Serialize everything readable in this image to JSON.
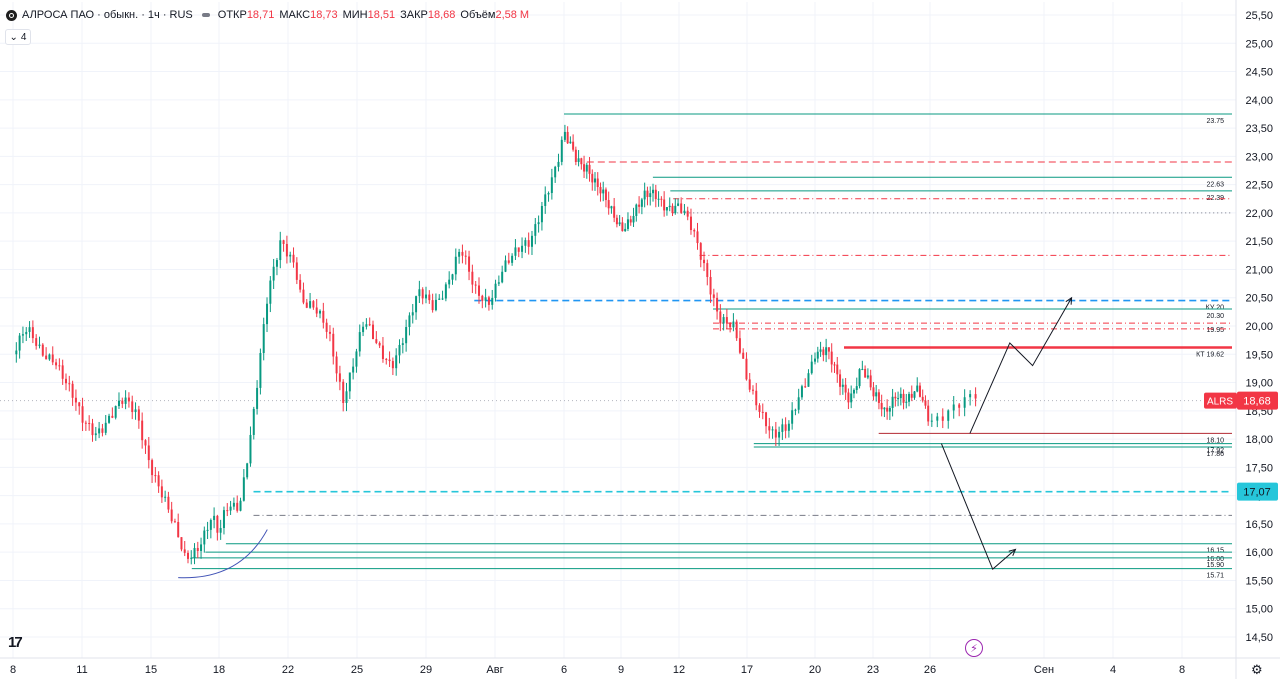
{
  "header": {
    "symbol_title": "АЛРОСА ПАО · обыкн. · 1ч · RUS",
    "ohlc": [
      {
        "label": "ОТКР",
        "value": "18,71"
      },
      {
        "label": "МАКС",
        "value": "18,73"
      },
      {
        "label": "МИН",
        "value": "18,51"
      },
      {
        "label": "ЗАКР",
        "value": "18,68"
      },
      {
        "label": "Объём",
        "value": "2,58 M"
      }
    ],
    "indicators_count": "4",
    "logo_text": "17"
  },
  "chart_data": {
    "type": "candlestick",
    "symbol": "ALRS",
    "last_price": "18,68",
    "price_axis": {
      "ylim": [
        14.5,
        25.5
      ],
      "ticks": [
        "25,50",
        "25,00",
        "24,50",
        "24,00",
        "23,50",
        "23,00",
        "22,50",
        "22,00",
        "21,50",
        "21,00",
        "20,50",
        "20,00",
        "19,50",
        "19,00",
        "18,50",
        "18,00",
        "17,50",
        "17,00",
        "16,50",
        "16,00",
        "15,50",
        "15,00",
        "14,50"
      ]
    },
    "time_axis": {
      "ticks": [
        {
          "label": "8",
          "i": 0
        },
        {
          "label": "11",
          "i": 1
        },
        {
          "label": "15",
          "i": 2
        },
        {
          "label": "18",
          "i": 3
        },
        {
          "label": "22",
          "i": 4
        },
        {
          "label": "25",
          "i": 5
        },
        {
          "label": "29",
          "i": 6
        },
        {
          "label": "Авг",
          "i": 7
        },
        {
          "label": "6",
          "i": 8
        },
        {
          "label": "9",
          "i": 9
        },
        {
          "label": "12",
          "i": 10
        },
        {
          "label": "17",
          "i": 11
        },
        {
          "label": "20",
          "i": 12
        },
        {
          "label": "23",
          "i": 13
        },
        {
          "label": "26",
          "i": 14
        },
        {
          "label": "Сен",
          "i": 15
        },
        {
          "label": "4",
          "i": 16
        },
        {
          "label": "8",
          "i": 17
        }
      ]
    },
    "price_path": [
      [
        0,
        19.5
      ],
      [
        0.2,
        19.85
      ],
      [
        0.4,
        19.6
      ],
      [
        0.6,
        19.5
      ],
      [
        0.8,
        18.85
      ],
      [
        1.0,
        18.3
      ],
      [
        1.2,
        18.2
      ],
      [
        1.4,
        18.4
      ],
      [
        1.6,
        18.6
      ],
      [
        1.8,
        18.45
      ],
      [
        2.0,
        17.6
      ],
      [
        2.3,
        16.5
      ],
      [
        2.5,
        15.9
      ],
      [
        2.7,
        16.2
      ],
      [
        2.9,
        16.6
      ],
      [
        3.0,
        16.2
      ],
      [
        3.1,
        16.7
      ],
      [
        3.3,
        16.9
      ],
      [
        3.5,
        18.5
      ],
      [
        3.7,
        20.4
      ],
      [
        3.9,
        21.5
      ],
      [
        4.1,
        21.2
      ],
      [
        4.2,
        20.5
      ],
      [
        4.4,
        20.2
      ],
      [
        4.6,
        19.8
      ],
      [
        4.8,
        18.8
      ],
      [
        4.9,
        19.2
      ],
      [
        5.1,
        20.0
      ],
      [
        5.3,
        19.6
      ],
      [
        5.5,
        19.4
      ],
      [
        5.7,
        19.9
      ],
      [
        5.9,
        20.5
      ],
      [
        6.1,
        20.4
      ],
      [
        6.3,
        20.8
      ],
      [
        6.5,
        21.3
      ],
      [
        6.7,
        20.6
      ],
      [
        6.9,
        20.5
      ],
      [
        7.1,
        21.0
      ],
      [
        7.3,
        21.2
      ],
      [
        7.5,
        21.5
      ],
      [
        7.7,
        22.3
      ],
      [
        7.9,
        22.8
      ],
      [
        8.0,
        23.3
      ],
      [
        8.2,
        23.0
      ],
      [
        8.4,
        22.9
      ],
      [
        8.6,
        22.4
      ],
      [
        8.8,
        22.0
      ],
      [
        9.0,
        21.8
      ],
      [
        9.2,
        22.0
      ],
      [
        9.4,
        22.2
      ],
      [
        9.6,
        22.3
      ],
      [
        9.8,
        22.2
      ],
      [
        10.0,
        22.1
      ],
      [
        10.2,
        21.6
      ],
      [
        10.4,
        21.0
      ],
      [
        10.6,
        20.2
      ],
      [
        10.8,
        19.9
      ],
      [
        11.0,
        19.0
      ],
      [
        11.2,
        18.6
      ],
      [
        11.4,
        18.05
      ],
      [
        11.6,
        18.1
      ],
      [
        11.8,
        18.9
      ],
      [
        12.0,
        19.6
      ],
      [
        12.2,
        19.5
      ],
      [
        12.4,
        19.0
      ],
      [
        12.6,
        18.8
      ],
      [
        12.8,
        19.3
      ],
      [
        13.0,
        18.7
      ],
      [
        13.2,
        18.5
      ],
      [
        13.4,
        18.9
      ],
      [
        13.6,
        18.6
      ],
      [
        13.8,
        18.8
      ],
      [
        14.0,
        18.4
      ],
      [
        14.2,
        18.6
      ],
      [
        14.4,
        18.68
      ]
    ],
    "levels": [
      {
        "price": 23.75,
        "label": "23.75",
        "color": "#089981",
        "style": "solid",
        "x0": 8.0
      },
      {
        "price": 22.9,
        "label": "",
        "color": "#f23645",
        "style": "dashed",
        "x0": 8.4
      },
      {
        "price": 22.63,
        "label": "22.63",
        "color": "#089981",
        "style": "solid",
        "x0": 9.55
      },
      {
        "price": 22.39,
        "label": "22.39",
        "color": "#089981",
        "style": "solid",
        "x0": 9.85
      },
      {
        "price": 22.25,
        "label": "",
        "color": "#f23645",
        "style": "dashdot",
        "x0": 9.9
      },
      {
        "price": 22.0,
        "label": "",
        "color": "#787b86",
        "style": "dotted",
        "x0": 9.9
      },
      {
        "price": 21.25,
        "label": "",
        "color": "#f23645",
        "style": "dashdot",
        "x0": 10.3
      },
      {
        "price": 20.45,
        "label": "КУ 20",
        "color": "#2196f3",
        "style": "dashed",
        "x0": 6.7
      },
      {
        "price": 20.3,
        "label": "20.30",
        "color": "#089981",
        "style": "solid",
        "x0": 10.5
      },
      {
        "price": 20.05,
        "label": "19.95",
        "color": "#f23645",
        "style": "dashdot",
        "x0": 10.5
      },
      {
        "price": 19.95,
        "label": "",
        "color": "#f23645",
        "style": "dashdot",
        "x0": 10.5
      },
      {
        "price": 19.62,
        "label": "КТ 19.62",
        "color": "#f23645",
        "style": "solid",
        "x0": 12.5
      },
      {
        "price": 18.1,
        "label": "18.10",
        "color": "#b22833",
        "style": "solid",
        "x0": 13.1
      },
      {
        "price": 17.92,
        "label": "17.92",
        "color": "#089981",
        "style": "solid",
        "x0": 11.1
      },
      {
        "price": 17.86,
        "label": "17.86",
        "color": "#089981",
        "style": "solid",
        "x0": 11.1
      },
      {
        "price": 17.07,
        "label": "",
        "color": "#26c6da",
        "style": "dashed",
        "x0": 3.5
      },
      {
        "price": 16.65,
        "label": "",
        "color": "#787b86",
        "style": "dashdot",
        "x0": 3.5
      },
      {
        "price": 16.15,
        "label": "16.15",
        "color": "#089981",
        "style": "solid",
        "x0": 3.1
      },
      {
        "price": 16.0,
        "label": "16.00",
        "color": "#089981",
        "style": "solid",
        "x0": 2.8
      },
      {
        "price": 15.9,
        "label": "15.90",
        "color": "#089981",
        "style": "solid",
        "x0": 2.6
      },
      {
        "price": 15.71,
        "label": "15.71",
        "color": "#089981",
        "style": "solid",
        "x0": 2.6
      }
    ],
    "price_badges": [
      {
        "label": "ALRS",
        "value": "18,68",
        "price": 18.68,
        "color": "#f23645"
      },
      {
        "label": "",
        "value": "17,07",
        "price": 17.07,
        "color": "#26c6da"
      }
    ],
    "scenario_path": [
      [
        14.35,
        18.1
      ],
      [
        14.7,
        19.7
      ],
      [
        14.9,
        19.3
      ],
      [
        15.4,
        20.5
      ]
    ],
    "scenario_down": [
      [
        14.1,
        17.92
      ],
      [
        14.55,
        15.7
      ],
      [
        14.75,
        16.05
      ]
    ]
  }
}
